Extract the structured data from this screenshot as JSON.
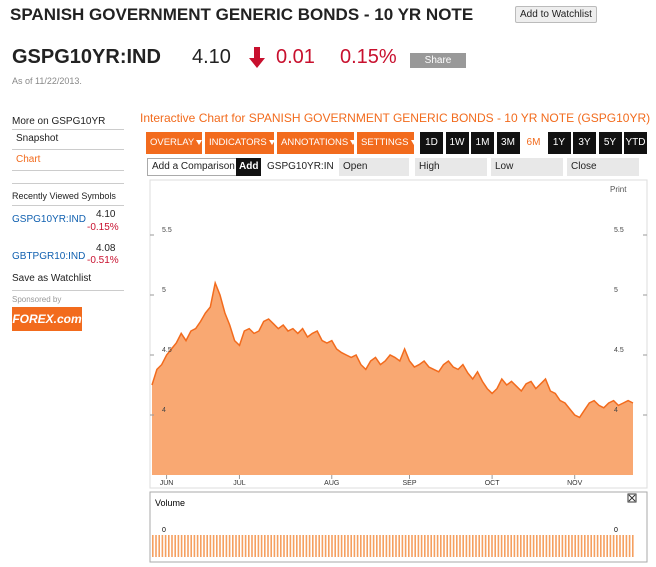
{
  "header": {
    "title": "SPANISH GOVERNMENT GENERIC BONDS - 10 YR NOTE",
    "add_to_watchlist": "Add to Watchlist",
    "ticker": "GSPG10YR:IND",
    "price": "4.10",
    "change": "0.01",
    "change_percent": "0.15%",
    "share": "Share",
    "as_of": "As of 11/22/2013."
  },
  "sidebar": {
    "more_on": "More on GSPG10YR",
    "links": [
      "Snapshot",
      "Chart"
    ],
    "recent_title": "Recently Viewed Symbols",
    "recent": [
      {
        "symbol": "GSPG10YR:IND",
        "price": "4.10",
        "change": "-0.15%"
      },
      {
        "symbol": "GBTPGR10:IND",
        "price": "4.08",
        "change": "-0.51%"
      }
    ],
    "save_watchlist": "Save as Watchlist",
    "sponsored_by": "Sponsored by",
    "sponsor": "FOREX.com"
  },
  "toolbar": {
    "menus": [
      "OVERLAY",
      "INDICATORS",
      "ANNOTATIONS",
      "SETTINGS"
    ],
    "periods": [
      "1D",
      "1W",
      "1M",
      "3M",
      "6M",
      "1Y",
      "3Y",
      "5Y",
      "YTD"
    ],
    "selected_period": "6M",
    "add_comparison": "Add a Comparison",
    "add": "Add",
    "fields": [
      "GSPG10YR:IN",
      "Open",
      "High",
      "Low",
      "Close"
    ]
  },
  "chart_data": {
    "type": "area",
    "title": "Interactive Chart for SPANISH GOVERNMENT GENERIC BONDS - 10 YR NOTE (GSPG10YR)",
    "categories": [
      null,
      null,
      null,
      "JUN",
      null,
      null,
      null,
      null,
      null,
      null,
      null,
      null,
      null,
      null,
      null,
      null,
      null,
      null,
      "JUL",
      null,
      null,
      null,
      null,
      null,
      null,
      null,
      null,
      null,
      null,
      null,
      null,
      null,
      null,
      null,
      null,
      null,
      null,
      "AUG",
      null,
      null,
      null,
      null,
      null,
      null,
      null,
      null,
      null,
      null,
      null,
      null,
      null,
      null,
      null,
      "SEP",
      null,
      null,
      null,
      null,
      null,
      null,
      null,
      null,
      null,
      null,
      null,
      null,
      null,
      null,
      null,
      null,
      "OCT",
      null,
      null,
      null,
      null,
      null,
      null,
      null,
      null,
      null,
      null,
      null,
      null,
      null,
      null,
      null,
      null,
      "NOV",
      null,
      null,
      null,
      null,
      null,
      null,
      null,
      null,
      null,
      null,
      null,
      null
    ],
    "values": [
      4.25,
      4.38,
      4.42,
      4.5,
      4.55,
      4.6,
      4.68,
      4.62,
      4.7,
      4.72,
      4.78,
      4.85,
      4.9,
      5.1,
      5.0,
      4.85,
      4.75,
      4.62,
      4.58,
      4.7,
      4.72,
      4.68,
      4.7,
      4.78,
      4.8,
      4.76,
      4.72,
      4.75,
      4.7,
      4.72,
      4.68,
      4.72,
      4.65,
      4.68,
      4.7,
      4.62,
      4.6,
      4.62,
      4.55,
      4.52,
      4.5,
      4.48,
      4.5,
      4.42,
      4.38,
      4.45,
      4.48,
      4.42,
      4.45,
      4.5,
      4.48,
      4.45,
      4.55,
      4.45,
      4.4,
      4.42,
      4.45,
      4.4,
      4.38,
      4.36,
      4.42,
      4.45,
      4.4,
      4.38,
      4.42,
      4.35,
      4.3,
      4.36,
      4.28,
      4.22,
      4.18,
      4.22,
      4.3,
      4.25,
      4.28,
      4.24,
      4.2,
      4.26,
      4.28,
      4.22,
      4.26,
      4.3,
      4.2,
      4.18,
      4.12,
      4.1,
      4.05,
      4.0,
      3.98,
      4.04,
      4.1,
      4.12,
      4.08,
      4.06,
      4.1,
      4.12,
      4.08,
      4.1,
      4.12,
      4.1
    ],
    "color": "#f9a872",
    "line_color": "#f26b1d",
    "ylim": [
      3.5,
      5.9
    ],
    "yticks": [
      4,
      4.5,
      5,
      5.5
    ],
    "print": "Print",
    "volume_label": "Volume",
    "volume_ticks": [
      0
    ]
  }
}
